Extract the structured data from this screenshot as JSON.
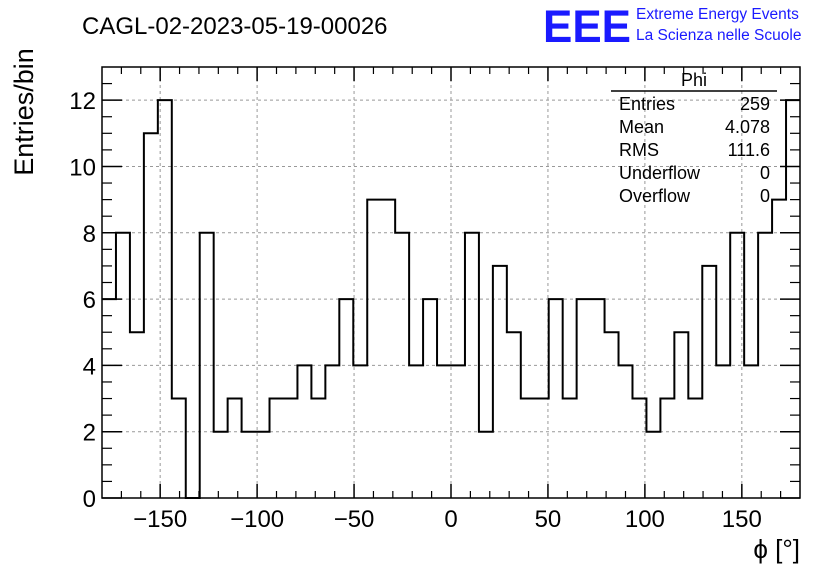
{
  "title": "CAGL-02-2023-05-19-00026",
  "logo": {
    "mark": "EEE",
    "line1": "Extreme Energy Events",
    "line2": "La Scienza nelle Scuole",
    "color": "#1a1aff"
  },
  "stats": {
    "name": "Phi",
    "rows": [
      {
        "label": "Entries",
        "value": "259"
      },
      {
        "label": "Mean",
        "value": "4.078"
      },
      {
        "label": "RMS",
        "value": "111.6"
      },
      {
        "label": "Underflow",
        "value": "0"
      },
      {
        "label": "Overflow",
        "value": "0"
      }
    ]
  },
  "chart_data": {
    "type": "bar",
    "style": "step-histogram",
    "title": "CAGL-02-2023-05-19-00026",
    "xlabel": "ϕ [°]",
    "ylabel": "Entries/bin",
    "xlim": [
      -180,
      180
    ],
    "ylim": [
      0,
      13
    ],
    "bin_width": 7.2,
    "x_ticks": [
      -150,
      -100,
      -50,
      0,
      50,
      100,
      150
    ],
    "x_tick_labels": [
      "−150",
      "−100",
      "−50",
      "0",
      "50",
      "100",
      "150"
    ],
    "y_ticks": [
      0,
      2,
      4,
      6,
      8,
      10,
      12
    ],
    "y_tick_labels": [
      "0",
      "2",
      "4",
      "6",
      "8",
      "10",
      "12"
    ],
    "grid": true,
    "values": [
      6,
      8,
      5,
      11,
      12,
      3,
      0,
      8,
      2,
      3,
      2,
      2,
      3,
      3,
      4,
      3,
      4,
      6,
      4,
      9,
      9,
      8,
      4,
      6,
      4,
      4,
      8,
      2,
      7,
      5,
      3,
      3,
      6,
      3,
      6,
      6,
      5,
      4,
      3,
      2,
      3,
      5,
      3,
      7,
      4,
      8,
      4,
      8,
      9,
      12
    ]
  }
}
